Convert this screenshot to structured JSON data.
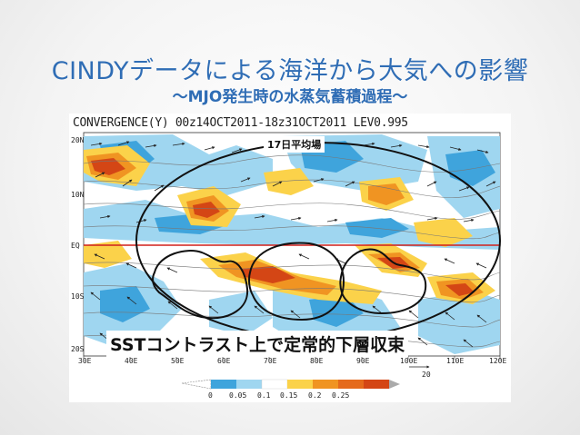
{
  "slide": {
    "title": "CINDYデータによる海洋から大気への影響",
    "subtitle": "〜MJO発生時の水蒸気蓄積過程〜"
  },
  "figure": {
    "header": "CONVERGENCE(Y) 00z14OCT2011-18z31OCT2011 LEV0.995",
    "y_ticks": [
      "20N",
      "10N",
      "EQ",
      "10S",
      "20S"
    ],
    "x_ticks": [
      "30E",
      "40E",
      "50E",
      "60E",
      "70E",
      "80E",
      "90E",
      "100E",
      "110E",
      "120E"
    ],
    "vector_reference": "20",
    "colorbar_ticks": [
      "0",
      "0.05",
      "0.1",
      "0.15",
      "0.2",
      "0.25"
    ],
    "colors": {
      "negative_light": "#9fd6f0",
      "negative_dark": "#3fa4dc",
      "positive_light": "#fbd24a",
      "positive_mid": "#f09422",
      "positive_dark": "#d44615",
      "equator_line": "#d0201c"
    }
  },
  "annotations": {
    "label_17day": "17日平均場",
    "label_sst": "SSTコントラスト上で定常的下層収束"
  }
}
